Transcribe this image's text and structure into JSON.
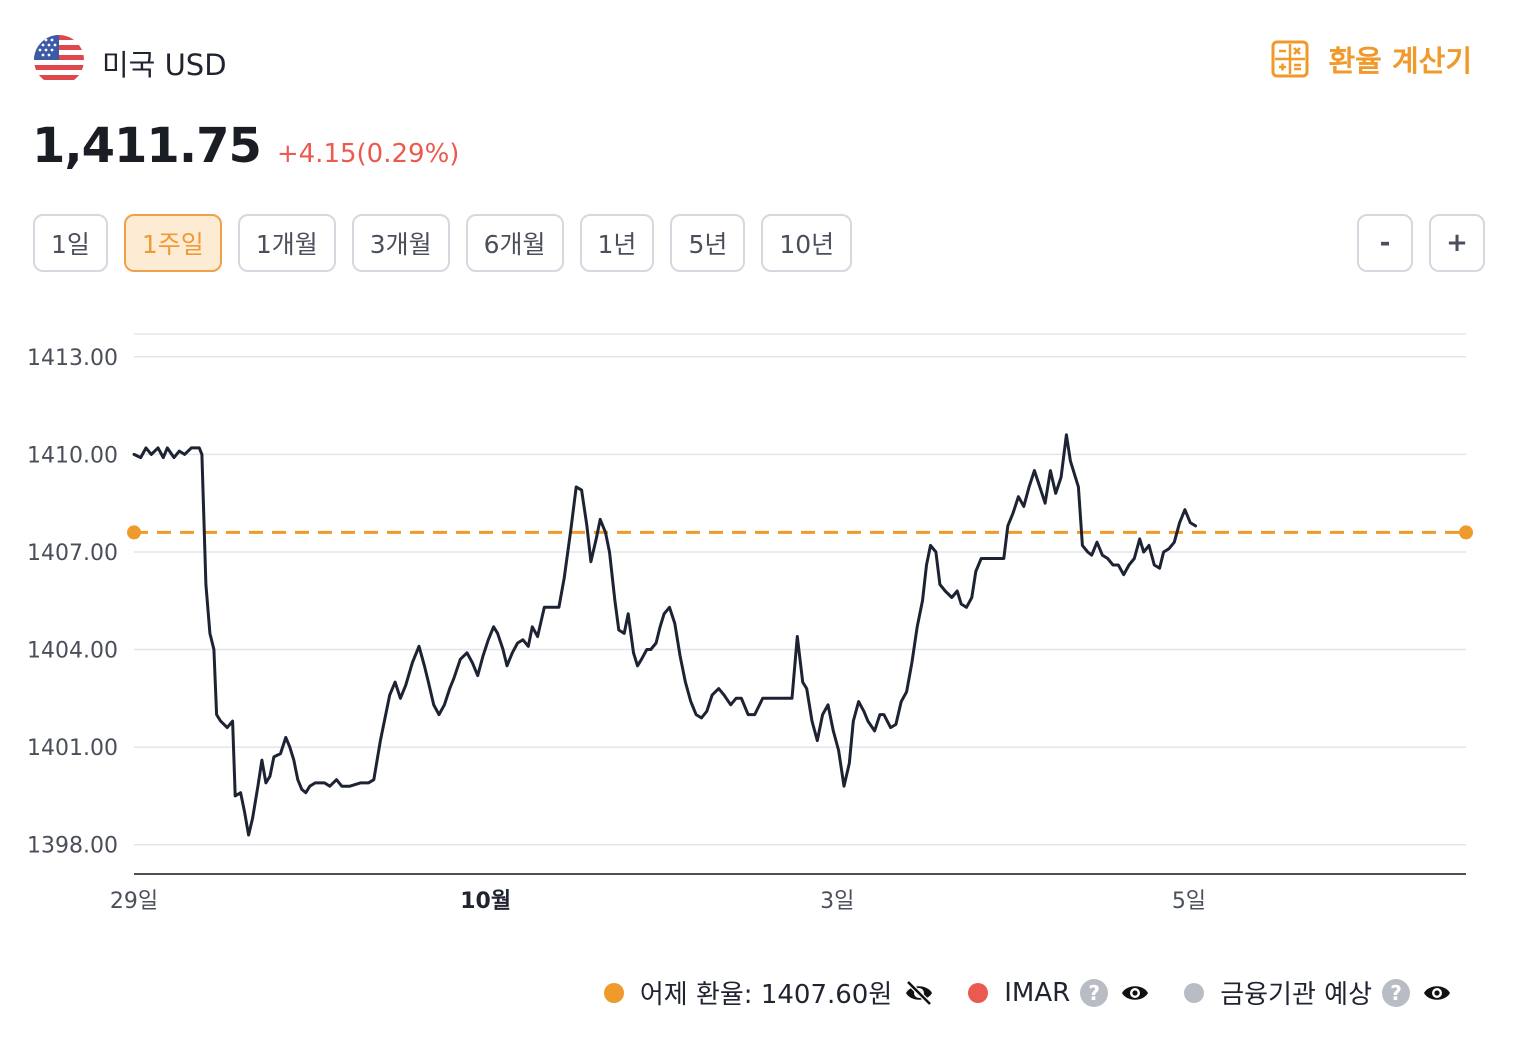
{
  "header": {
    "currency_name": "미국 USD",
    "calc_label": "환율 계산기"
  },
  "quote": {
    "price": "1,411.75",
    "change": "+4.15(0.29%)"
  },
  "ranges": [
    {
      "label": "1일",
      "active": false
    },
    {
      "label": "1주일",
      "active": true
    },
    {
      "label": "1개월",
      "active": false
    },
    {
      "label": "3개월",
      "active": false
    },
    {
      "label": "6개월",
      "active": false
    },
    {
      "label": "1년",
      "active": false
    },
    {
      "label": "5년",
      "active": false
    },
    {
      "label": "10년",
      "active": false
    }
  ],
  "zoom": {
    "minus": "-",
    "plus": "+"
  },
  "legend": {
    "yesterday": "어제 환율: 1407.60원",
    "imar": "IMAR",
    "forecast": "금융기관 예상",
    "help": "?"
  },
  "colors": {
    "line": "#1d2333",
    "reference": "#ef9a2a",
    "accent": "#ef9a2a",
    "up": "#ea5a4f",
    "imar": "#ea5a4f",
    "forecast": "#b8bcc4"
  },
  "chart_data": {
    "type": "line",
    "yticks": [
      1398,
      1401,
      1404,
      1407,
      1410,
      1413
    ],
    "ylim": [
      1397.1,
      1413.7
    ],
    "xrange": [
      0,
      100
    ],
    "xticks": [
      {
        "x": 0,
        "label": "29일",
        "bold": false
      },
      {
        "x": 26.4,
        "label": "10월",
        "bold": true
      },
      {
        "x": 52.8,
        "label": "3일",
        "bold": false
      },
      {
        "x": 79.2,
        "label": "5일",
        "bold": false
      }
    ],
    "reference_line": 1407.6,
    "series": [
      {
        "points": [
          [
            0,
            1410.0
          ],
          [
            0.5,
            1409.9
          ],
          [
            0.9,
            1410.2
          ],
          [
            1.3,
            1410.0
          ],
          [
            1.8,
            1410.2
          ],
          [
            2.2,
            1409.9
          ],
          [
            2.5,
            1410.2
          ],
          [
            3.0,
            1409.9
          ],
          [
            3.4,
            1410.1
          ],
          [
            3.8,
            1410.0
          ],
          [
            4.3,
            1410.2
          ],
          [
            4.9,
            1410.2
          ],
          [
            5.1,
            1410.0
          ],
          [
            5.4,
            1406.0
          ],
          [
            5.7,
            1404.5
          ],
          [
            6.0,
            1404.0
          ],
          [
            6.2,
            1402.0
          ],
          [
            6.5,
            1401.8
          ],
          [
            7.0,
            1401.6
          ],
          [
            7.4,
            1401.8
          ],
          [
            7.6,
            1399.5
          ],
          [
            8.0,
            1399.6
          ],
          [
            8.3,
            1399.0
          ],
          [
            8.6,
            1398.3
          ],
          [
            8.9,
            1398.8
          ],
          [
            9.3,
            1399.8
          ],
          [
            9.6,
            1400.6
          ],
          [
            9.9,
            1399.9
          ],
          [
            10.2,
            1400.1
          ],
          [
            10.5,
            1400.7
          ],
          [
            11.0,
            1400.8
          ],
          [
            11.4,
            1401.3
          ],
          [
            11.7,
            1401.0
          ],
          [
            12.0,
            1400.6
          ],
          [
            12.3,
            1400.0
          ],
          [
            12.6,
            1399.7
          ],
          [
            12.9,
            1399.6
          ],
          [
            13.2,
            1399.8
          ],
          [
            13.6,
            1399.9
          ],
          [
            14.0,
            1399.9
          ],
          [
            14.3,
            1399.9
          ],
          [
            14.7,
            1399.8
          ],
          [
            15.2,
            1400.0
          ],
          [
            15.6,
            1399.8
          ],
          [
            16.2,
            1399.8
          ],
          [
            17.0,
            1399.9
          ],
          [
            17.6,
            1399.9
          ],
          [
            18.0,
            1400.0
          ],
          [
            18.5,
            1401.2
          ],
          [
            19.2,
            1402.6
          ],
          [
            19.6,
            1403.0
          ],
          [
            20.0,
            1402.5
          ],
          [
            20.4,
            1402.9
          ],
          [
            20.9,
            1403.6
          ],
          [
            21.4,
            1404.1
          ],
          [
            21.8,
            1403.5
          ],
          [
            22.1,
            1403.0
          ],
          [
            22.5,
            1402.3
          ],
          [
            22.9,
            1402.0
          ],
          [
            23.3,
            1402.3
          ],
          [
            23.7,
            1402.8
          ],
          [
            24.0,
            1403.1
          ],
          [
            24.5,
            1403.7
          ],
          [
            25.0,
            1403.9
          ],
          [
            25.4,
            1403.6
          ],
          [
            25.8,
            1403.2
          ],
          [
            26.2,
            1403.8
          ],
          [
            26.6,
            1404.3
          ],
          [
            27.0,
            1404.7
          ],
          [
            27.3,
            1404.5
          ],
          [
            27.7,
            1404.0
          ],
          [
            28.0,
            1403.5
          ],
          [
            28.4,
            1403.9
          ],
          [
            28.8,
            1404.2
          ],
          [
            29.2,
            1404.3
          ],
          [
            29.6,
            1404.1
          ],
          [
            29.9,
            1404.7
          ],
          [
            30.3,
            1404.4
          ],
          [
            30.8,
            1405.3
          ],
          [
            31.3,
            1405.3
          ],
          [
            31.9,
            1405.3
          ],
          [
            32.3,
            1406.2
          ],
          [
            32.8,
            1407.7
          ],
          [
            33.2,
            1409.0
          ],
          [
            33.6,
            1408.9
          ],
          [
            34.0,
            1407.8
          ],
          [
            34.3,
            1406.7
          ],
          [
            34.7,
            1407.4
          ],
          [
            35.0,
            1408.0
          ],
          [
            35.4,
            1407.6
          ],
          [
            35.7,
            1407.0
          ],
          [
            36.1,
            1405.5
          ],
          [
            36.4,
            1404.6
          ],
          [
            36.8,
            1404.5
          ],
          [
            37.1,
            1405.1
          ],
          [
            37.5,
            1403.9
          ],
          [
            37.8,
            1403.5
          ],
          [
            38.1,
            1403.7
          ],
          [
            38.5,
            1404.0
          ],
          [
            38.8,
            1404.0
          ],
          [
            39.2,
            1404.2
          ],
          [
            39.5,
            1404.7
          ],
          [
            39.8,
            1405.1
          ],
          [
            40.2,
            1405.3
          ],
          [
            40.6,
            1404.8
          ],
          [
            41.0,
            1403.8
          ],
          [
            41.4,
            1403.0
          ],
          [
            41.8,
            1402.4
          ],
          [
            42.2,
            1402.0
          ],
          [
            42.6,
            1401.9
          ],
          [
            43.0,
            1402.1
          ],
          [
            43.4,
            1402.6
          ],
          [
            43.9,
            1402.8
          ],
          [
            44.3,
            1402.6
          ],
          [
            44.8,
            1402.3
          ],
          [
            45.2,
            1402.5
          ],
          [
            45.6,
            1402.5
          ],
          [
            46.1,
            1402.0
          ],
          [
            46.6,
            1402.0
          ],
          [
            47.2,
            1402.5
          ],
          [
            47.8,
            1402.5
          ],
          [
            48.4,
            1402.5
          ],
          [
            48.9,
            1402.5
          ],
          [
            49.4,
            1402.5
          ],
          [
            49.8,
            1404.4
          ],
          [
            50.2,
            1403.0
          ],
          [
            50.5,
            1402.8
          ],
          [
            50.9,
            1401.8
          ],
          [
            51.3,
            1401.2
          ],
          [
            51.7,
            1402.0
          ],
          [
            52.1,
            1402.3
          ],
          [
            52.5,
            1401.5
          ],
          [
            52.9,
            1400.9
          ],
          [
            53.3,
            1399.8
          ],
          [
            53.7,
            1400.5
          ],
          [
            54.0,
            1401.8
          ],
          [
            54.4,
            1402.4
          ],
          [
            54.8,
            1402.1
          ],
          [
            55.1,
            1401.8
          ],
          [
            55.6,
            1401.5
          ],
          [
            56.0,
            1402.0
          ],
          [
            56.3,
            1402.0
          ],
          [
            56.8,
            1401.6
          ],
          [
            57.2,
            1401.7
          ],
          [
            57.6,
            1402.4
          ],
          [
            58.0,
            1402.7
          ],
          [
            58.4,
            1403.6
          ],
          [
            58.8,
            1404.7
          ],
          [
            59.2,
            1405.5
          ],
          [
            59.5,
            1406.6
          ],
          [
            59.8,
            1407.2
          ],
          [
            60.2,
            1407.0
          ],
          [
            60.5,
            1406.0
          ],
          [
            60.9,
            1405.8
          ],
          [
            61.4,
            1405.6
          ],
          [
            61.8,
            1405.8
          ],
          [
            62.1,
            1405.4
          ],
          [
            62.5,
            1405.3
          ],
          [
            62.9,
            1405.6
          ],
          [
            63.2,
            1406.4
          ],
          [
            63.6,
            1406.8
          ],
          [
            64.0,
            1406.8
          ],
          [
            64.4,
            1406.8
          ],
          [
            64.9,
            1406.8
          ],
          [
            65.3,
            1406.8
          ],
          [
            65.6,
            1407.8
          ],
          [
            66.0,
            1408.2
          ],
          [
            66.4,
            1408.7
          ],
          [
            66.8,
            1408.4
          ],
          [
            67.2,
            1409.0
          ],
          [
            67.6,
            1409.5
          ],
          [
            68.0,
            1409.0
          ],
          [
            68.4,
            1408.5
          ],
          [
            68.8,
            1409.5
          ],
          [
            69.2,
            1408.8
          ],
          [
            69.6,
            1409.3
          ],
          [
            70.0,
            1410.6
          ],
          [
            70.3,
            1409.8
          ],
          [
            70.6,
            1409.4
          ],
          [
            70.9,
            1409.0
          ],
          [
            71.2,
            1407.2
          ],
          [
            71.6,
            1407.0
          ],
          [
            71.9,
            1406.9
          ],
          [
            72.3,
            1407.3
          ],
          [
            72.7,
            1406.9
          ],
          [
            73.1,
            1406.8
          ],
          [
            73.5,
            1406.6
          ],
          [
            73.9,
            1406.6
          ],
          [
            74.3,
            1406.3
          ],
          [
            74.7,
            1406.6
          ],
          [
            75.1,
            1406.8
          ],
          [
            75.5,
            1407.4
          ],
          [
            75.8,
            1407.0
          ],
          [
            76.2,
            1407.2
          ],
          [
            76.6,
            1406.6
          ],
          [
            77.0,
            1406.5
          ],
          [
            77.3,
            1407.0
          ],
          [
            77.7,
            1407.1
          ],
          [
            78.1,
            1407.3
          ],
          [
            78.5,
            1407.9
          ],
          [
            78.9,
            1408.3
          ],
          [
            79.3,
            1407.9
          ],
          [
            79.7,
            1407.8
          ]
        ]
      }
    ]
  }
}
